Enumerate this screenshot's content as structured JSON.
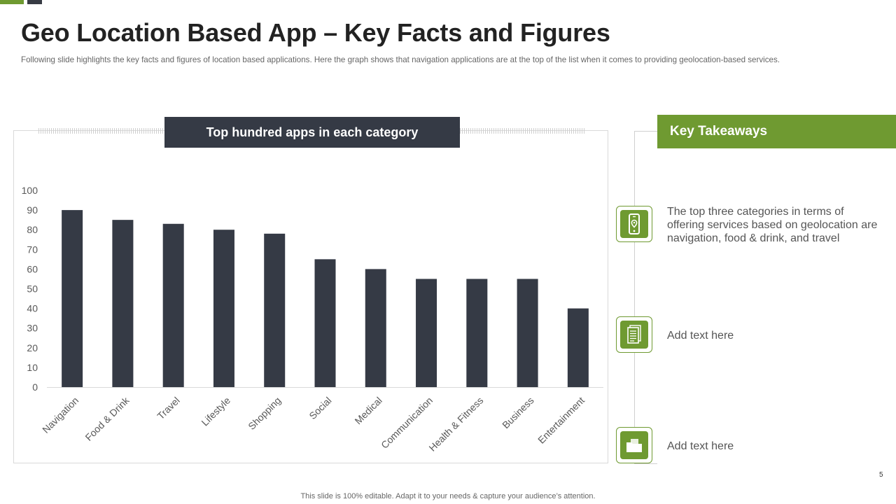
{
  "slide": {
    "title": "Geo Location Based App – Key Facts and Figures",
    "subtitle": "Following slide highlights the key facts and figures of location based applications. Here the graph shows that navigation applications are at the top of the list when it comes to providing geolocation-based services.",
    "page_number": "5",
    "footer": "This slide is 100% editable. Adapt it to your needs & capture your audience’s attention."
  },
  "chart_header": "Top hundred apps in each category",
  "chart_data": {
    "type": "bar",
    "title": "Top hundred apps in each category",
    "categories": [
      "Navigation",
      "Food & Drink",
      "Travel",
      "Lifestyle",
      "Shopping",
      "Social",
      "Medical",
      "Communication",
      "Health & Fitness",
      "Business",
      "Entertainment"
    ],
    "values": [
      90,
      85,
      83,
      80,
      78,
      65,
      60,
      55,
      55,
      55,
      40
    ],
    "ylim": [
      0,
      100
    ],
    "yticks": [
      0,
      10,
      20,
      30,
      40,
      50,
      60,
      70,
      80,
      90,
      100
    ],
    "xlabel": "",
    "ylabel": "",
    "grid": false,
    "legend": "none",
    "bar_color": "#353a45"
  },
  "takeaways": {
    "title": "Key Takeaways",
    "items": [
      {
        "icon": "smartphone-location-icon",
        "text": "The top three categories in terms of offering services based on geolocation are navigation, food & drink, and travel"
      },
      {
        "icon": "document-icon",
        "text": "Add text here"
      },
      {
        "icon": "folder-icon",
        "text": "Add text here"
      }
    ]
  },
  "colors": {
    "accent_green": "#6f9a31",
    "dark": "#353a45"
  }
}
